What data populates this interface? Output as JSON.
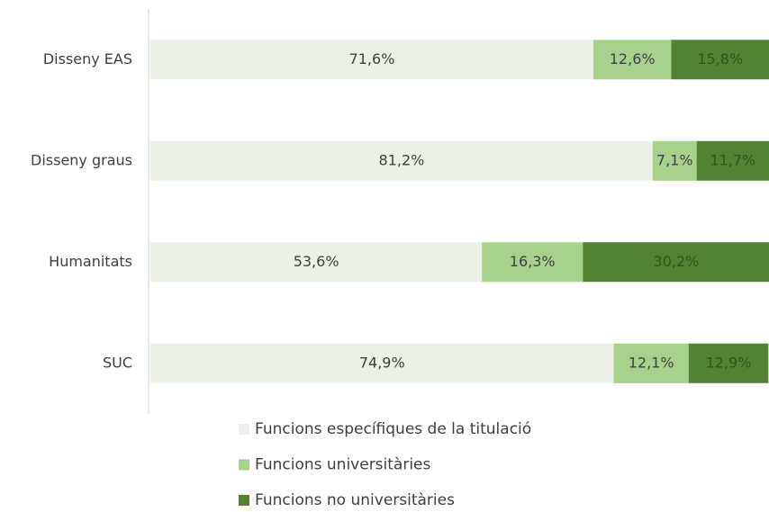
{
  "chart_data": {
    "type": "bar",
    "orientation": "horizontal",
    "stacked": true,
    "categories": [
      "Disseny EAS",
      "Disseny graus",
      "Humanitats",
      "SUC"
    ],
    "xlim": [
      0,
      100
    ],
    "series": [
      {
        "name": "Funcions específiques de la titulació",
        "color": "#ebf1e6",
        "label_color": "#404040",
        "values": [
          71.6,
          81.2,
          53.6,
          74.9
        ],
        "value_labels": [
          "71,6%",
          "81,2%",
          "53,6%",
          "74,9%"
        ]
      },
      {
        "name": "Funcions universitàries",
        "color": "#a9d18e",
        "label_color": "#404040",
        "values": [
          12.6,
          7.1,
          16.3,
          12.1
        ],
        "value_labels": [
          "12,6%",
          "7,1%",
          "16,3%",
          "12,1%"
        ]
      },
      {
        "name": "Funcions no universitàries",
        "color": "#548235",
        "label_color": "#34521f",
        "values": [
          15.8,
          11.7,
          30.2,
          12.9
        ],
        "value_labels": [
          "15,8%",
          "11,7%",
          "30,2%",
          "12,9%"
        ]
      }
    ]
  }
}
